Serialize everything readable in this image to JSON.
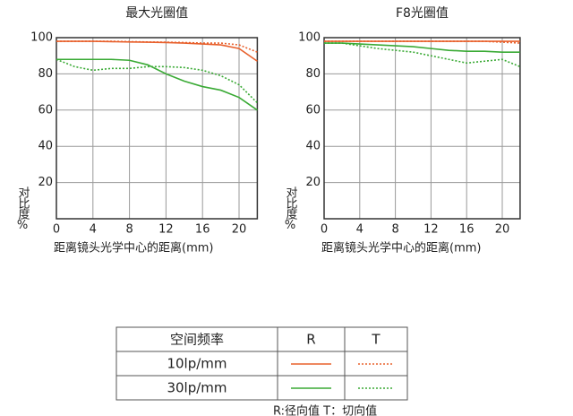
{
  "chart_data": [
    {
      "type": "line",
      "title": "最大光圈值",
      "x_label": "距离镜头光学中心的距离(mm)",
      "y_label": "对比度%",
      "x": [
        0,
        2,
        4,
        6,
        8,
        10,
        12,
        14,
        16,
        18,
        20,
        22
      ],
      "xlim": [
        0,
        22
      ],
      "ylim": [
        0,
        100
      ],
      "xticks": [
        0,
        4,
        8,
        12,
        16,
        20
      ],
      "yticks": [
        20,
        40,
        60,
        80,
        100
      ],
      "grid": true,
      "series": [
        {
          "color": "#e8602c",
          "style": "solid",
          "values": [
            98,
            98,
            98,
            97.8,
            97.6,
            97.5,
            97.3,
            97,
            96.5,
            96,
            94,
            87
          ]
        },
        {
          "color": "#e8602c",
          "style": "dotted",
          "values": [
            98,
            98,
            98,
            98,
            97.8,
            97.6,
            97.5,
            97.3,
            97,
            97,
            96,
            92
          ]
        },
        {
          "color": "#3aaa35",
          "style": "solid",
          "values": [
            88,
            88,
            88,
            88,
            87.5,
            85,
            80,
            76,
            73,
            71,
            67,
            60
          ]
        },
        {
          "color": "#3aaa35",
          "style": "dotted",
          "values": [
            88,
            84,
            82,
            83,
            83,
            84,
            84,
            83.5,
            82,
            79,
            74,
            64
          ]
        }
      ]
    },
    {
      "type": "line",
      "title": "F8光圈值",
      "x_label": "距离镜头光学中心的距离(mm)",
      "y_label": "对比度%",
      "x": [
        0,
        2,
        4,
        6,
        8,
        10,
        12,
        14,
        16,
        18,
        20,
        22
      ],
      "xlim": [
        0,
        22
      ],
      "ylim": [
        0,
        100
      ],
      "xticks": [
        0,
        4,
        8,
        12,
        16,
        20
      ],
      "yticks": [
        20,
        40,
        60,
        80,
        100
      ],
      "grid": true,
      "series": [
        {
          "color": "#e8602c",
          "style": "solid",
          "values": [
            98,
            98,
            98,
            98,
            98,
            98,
            98,
            98,
            98,
            98,
            98,
            98
          ]
        },
        {
          "color": "#e8602c",
          "style": "dotted",
          "values": [
            98,
            98,
            98,
            98,
            98,
            98,
            98,
            98,
            98,
            98,
            97.5,
            97
          ]
        },
        {
          "color": "#3aaa35",
          "style": "solid",
          "values": [
            97,
            97,
            96.5,
            96,
            95.5,
            95,
            94,
            93,
            92.5,
            92.5,
            92,
            92
          ]
        },
        {
          "color": "#3aaa35",
          "style": "dotted",
          "values": [
            97,
            97,
            95.5,
            94,
            93,
            92,
            90,
            88,
            86,
            87,
            88,
            84
          ]
        }
      ]
    }
  ],
  "legend": {
    "header": [
      "空间频率",
      "R",
      "T"
    ],
    "rows": [
      "10lp/mm",
      "30lp/mm"
    ],
    "note": "R:径向值 T：切向值"
  }
}
